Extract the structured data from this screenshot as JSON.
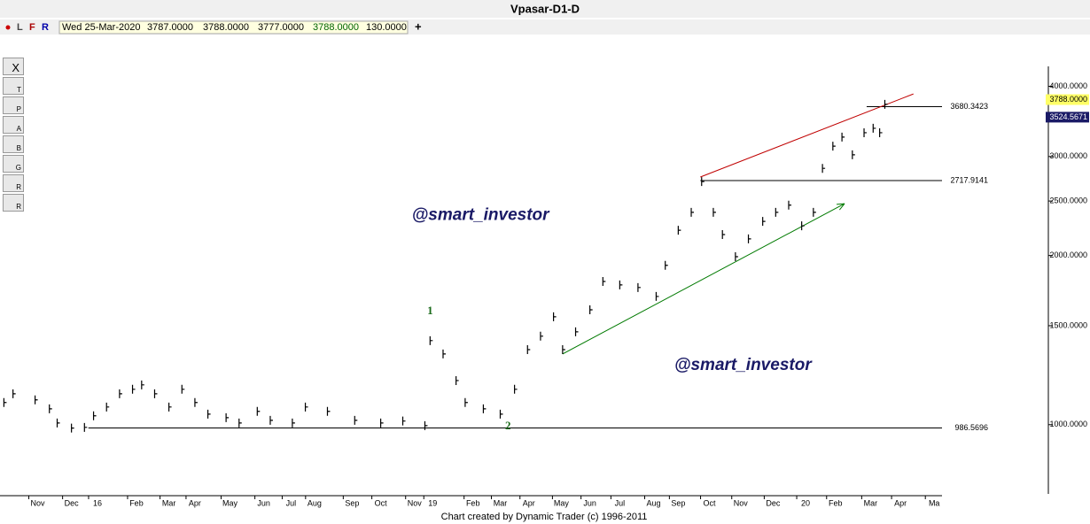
{
  "chart_data": {
    "type": "bar",
    "title": "Vpasar-D1-D",
    "info_bar": {
      "flags": [
        "L",
        "F",
        "R"
      ],
      "date": "Wed 25-Mar-2020",
      "open": "3787.0000",
      "high": "3788.0000",
      "low": "3777.0000",
      "close": "3788.0000",
      "volume": "130.0000"
    },
    "toolbar": [
      "X",
      "T",
      "P",
      "A",
      "B",
      "G",
      "R",
      "R"
    ],
    "log_scale": true,
    "xlim": [
      0,
      725
    ],
    "ylim": [
      753,
      4340
    ],
    "xticks": [
      {
        "value": 29,
        "label": "Nov"
      },
      {
        "value": 55,
        "label": "Dec"
      },
      {
        "value": 75,
        "label": "16"
      },
      {
        "value": 105,
        "label": "Feb"
      },
      {
        "value": 130,
        "label": "Mar"
      },
      {
        "value": 150,
        "label": "Apr"
      },
      {
        "value": 177,
        "label": "May"
      },
      {
        "value": 203,
        "label": "Jun"
      },
      {
        "value": 224,
        "label": "Jul"
      },
      {
        "value": 242,
        "label": "Aug"
      },
      {
        "value": 271,
        "label": "Sep"
      },
      {
        "value": 293,
        "label": "Oct"
      },
      {
        "value": 319,
        "label": "Nov"
      },
      {
        "value": 333,
        "label": "19"
      },
      {
        "value": 364,
        "label": "Feb"
      },
      {
        "value": 385,
        "label": "Mar"
      },
      {
        "value": 407,
        "label": "Apr"
      },
      {
        "value": 432,
        "label": "May"
      },
      {
        "value": 454,
        "label": "Jun"
      },
      {
        "value": 477,
        "label": "Jul"
      },
      {
        "value": 503,
        "label": "Aug"
      },
      {
        "value": 522,
        "label": "Sep"
      },
      {
        "value": 546,
        "label": "Oct"
      },
      {
        "value": 570,
        "label": "Nov"
      },
      {
        "value": 595,
        "label": "Dec"
      },
      {
        "value": 620,
        "label": "20"
      },
      {
        "value": 643,
        "label": "Feb"
      },
      {
        "value": 670,
        "label": "Mar"
      },
      {
        "value": 693,
        "label": "Apr"
      },
      {
        "value": 719,
        "label": "Ma"
      }
    ],
    "yticks": [
      {
        "value": 1000,
        "label": "1000.0000"
      },
      {
        "value": 1500,
        "label": "1500.0000"
      },
      {
        "value": 2000,
        "label": "2000.0000"
      },
      {
        "value": 2500,
        "label": "2500.0000"
      },
      {
        "value": 3000,
        "label": "3000.0000"
      },
      {
        "value": 4000,
        "label": "4000.0000"
      }
    ],
    "color": "#000000",
    "x": [
      3,
      10,
      27,
      38,
      44,
      55,
      65,
      72,
      82,
      92,
      102,
      109,
      119,
      130,
      140,
      150,
      160,
      174,
      184,
      198,
      208,
      225,
      235,
      252,
      273,
      293,
      310,
      327,
      331,
      341,
      351,
      358,
      372,
      385,
      396,
      406,
      416,
      426,
      433,
      443,
      454,
      464,
      477,
      491,
      505,
      512,
      522,
      532,
      540,
      549,
      556,
      566,
      576,
      587,
      597,
      607,
      617,
      626,
      633,
      641,
      648,
      656,
      665,
      672,
      677,
      681
    ],
    "values": [
      1095,
      1135,
      1107,
      1067,
      1007,
      986,
      989,
      1037,
      1075,
      1135,
      1156,
      1177,
      1135,
      1075,
      1156,
      1095,
      1044,
      1029,
      1007,
      1056,
      1018,
      1007,
      1075,
      1056,
      1018,
      1007,
      1015,
      996,
      1411,
      1336,
      1198,
      1095,
      1067,
      1044,
      1156,
      1360,
      1437,
      1556,
      1360,
      1463,
      1601,
      1798,
      1773,
      1754,
      1691,
      1921,
      2218,
      2387,
      2707,
      2387,
      2179,
      1990,
      2141,
      2300,
      2387,
      2458,
      2258,
      2387,
      2858,
      3130,
      3249,
      3021,
      3307,
      3368,
      3307,
      3715
    ],
    "price_tags": [
      {
        "value": 3788,
        "label": "3788.0000",
        "color": "#ffff66"
      },
      {
        "value": 3524.5671,
        "label": "3524.5671",
        "color": "#1a1a66"
      }
    ],
    "levels": [
      {
        "value": 3680.3423,
        "x_start": 667
      },
      {
        "value": 2717.9141,
        "x_start": 539
      },
      {
        "value": 986.5696,
        "x_start": 68
      }
    ],
    "trend_lines": [
      {
        "x": [
          539,
          703
        ],
        "y": [
          2758,
          3877
        ],
        "color": "#c00000"
      },
      {
        "x": [
          433,
          650
        ],
        "y": [
          1336,
          2473
        ],
        "color": "#007a00"
      }
    ],
    "wave_labels": [
      {
        "text": "1",
        "x": 331,
        "y": 1590
      },
      {
        "text": "2",
        "x": 391,
        "y": 992
      }
    ],
    "watermarks": [
      {
        "text": "@smart_investor",
        "x": 317,
        "y": 2355
      },
      {
        "text": "@smart_investor",
        "x": 519,
        "y": 1275
      }
    ],
    "footer": "Chart created by Dynamic Trader  (c) 1996-2011"
  }
}
